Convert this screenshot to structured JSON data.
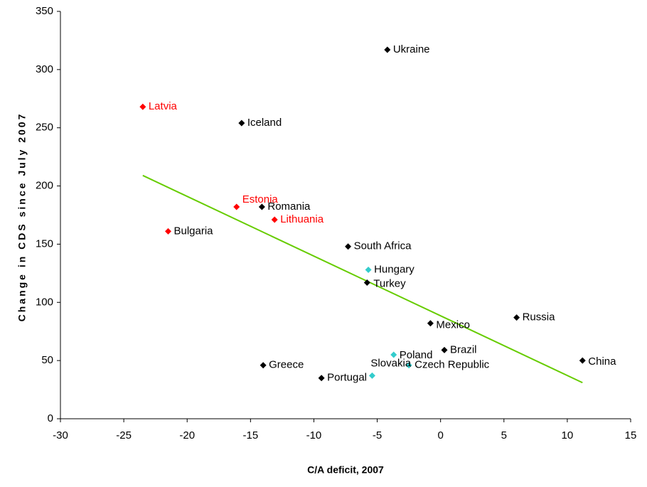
{
  "chart_data": {
    "type": "scatter",
    "x_label": "C/A deficit, 2007",
    "y_label": "Change in CDS since July 2007",
    "xlim": [
      -30,
      15
    ],
    "xticks": [
      -30,
      -25,
      -20,
      -15,
      -10,
      -5,
      0,
      5,
      10,
      15
    ],
    "ylim": [
      0,
      350
    ],
    "yticks": [
      0,
      50,
      100,
      150,
      200,
      250,
      300,
      350
    ],
    "grid": false,
    "points": [
      {
        "label": "Ukraine",
        "x": -4.2,
        "y": 317,
        "color": "#000000",
        "label_color": "#000000"
      },
      {
        "label": "Latvia",
        "x": -23.5,
        "y": 268,
        "color": "#ff0000",
        "label_color": "#ff0000"
      },
      {
        "label": "Iceland",
        "x": -15.7,
        "y": 254,
        "color": "#000000",
        "label_color": "#000000"
      },
      {
        "label": "Estonia",
        "x": -16.1,
        "y": 182,
        "color": "#ff0000",
        "label_color": "#ff0000"
      },
      {
        "label": "Romania",
        "x": -14.1,
        "y": 182,
        "color": "#000000",
        "label_color": "#000000"
      },
      {
        "label": "Lithuania",
        "x": -13.1,
        "y": 171,
        "color": "#ff0000",
        "label_color": "#ff0000"
      },
      {
        "label": "Bulgaria",
        "x": -21.5,
        "y": 161,
        "color": "#ff0000",
        "label_color": "#000000"
      },
      {
        "label": "South Africa",
        "x": -7.3,
        "y": 148,
        "color": "#000000",
        "label_color": "#000000"
      },
      {
        "label": "Hungary",
        "x": -5.7,
        "y": 128,
        "color": "#33cccc",
        "label_color": "#000000"
      },
      {
        "label": "Turkey",
        "x": -5.8,
        "y": 117,
        "color": "#000000",
        "label_color": "#000000"
      },
      {
        "label": "Mexico",
        "x": -0.8,
        "y": 82,
        "color": "#000000",
        "label_color": "#000000"
      },
      {
        "label": "Russia",
        "x": 6.0,
        "y": 87,
        "color": "#000000",
        "label_color": "#000000"
      },
      {
        "label": "Brazil",
        "x": 0.3,
        "y": 59,
        "color": "#000000",
        "label_color": "#000000"
      },
      {
        "label": "China",
        "x": 11.2,
        "y": 50,
        "color": "#000000",
        "label_color": "#000000"
      },
      {
        "label": "Poland",
        "x": -3.7,
        "y": 55,
        "color": "#33cccc",
        "label_color": "#000000"
      },
      {
        "label": "Czech Republic",
        "x": -2.5,
        "y": 46,
        "color": "#33cccc",
        "label_color": "#000000"
      },
      {
        "label": "Slovakia",
        "x": -5.4,
        "y": 37,
        "color": "#33cccc",
        "label_color": "#000000"
      },
      {
        "label": "Greece",
        "x": -14.0,
        "y": 46,
        "color": "#000000",
        "label_color": "#000000"
      },
      {
        "label": "Portugal",
        "x": -9.4,
        "y": 35,
        "color": "#000000",
        "label_color": "#000000"
      }
    ],
    "trendline": {
      "x": [
        -23.5,
        11.2
      ],
      "y": [
        209,
        31
      ],
      "color": "#66cc00"
    }
  }
}
